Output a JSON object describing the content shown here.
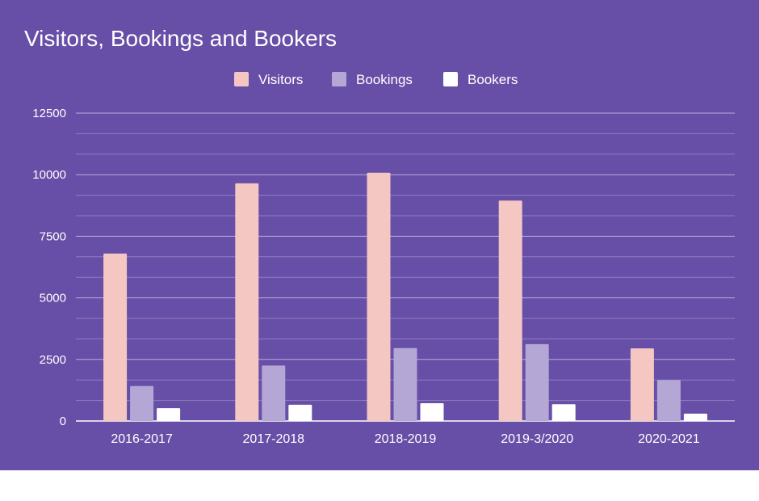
{
  "chart_data": {
    "type": "bar",
    "title": "Visitors, Bookings and Bookers",
    "xlabel": "",
    "ylabel": "",
    "categories": [
      "2016-2017",
      "2017-2018",
      "2018-2019",
      "2019-3/2020",
      "2020-2021"
    ],
    "series": [
      {
        "name": "Visitors",
        "color": "#f4c7c3",
        "values": [
          6800,
          9650,
          10080,
          8950,
          2950
        ]
      },
      {
        "name": "Bookings",
        "color": "#b4a7d6",
        "values": [
          1420,
          2250,
          2960,
          3120,
          1660
        ]
      },
      {
        "name": "Bookers",
        "color": "#ffffff",
        "values": [
          520,
          660,
          720,
          680,
          300
        ]
      }
    ],
    "ylim": [
      0,
      12500
    ],
    "yticks": [
      0,
      2500,
      5000,
      7500,
      10000,
      12500
    ],
    "grid": true,
    "legend": "top-center",
    "background_color": "#674ea7"
  }
}
